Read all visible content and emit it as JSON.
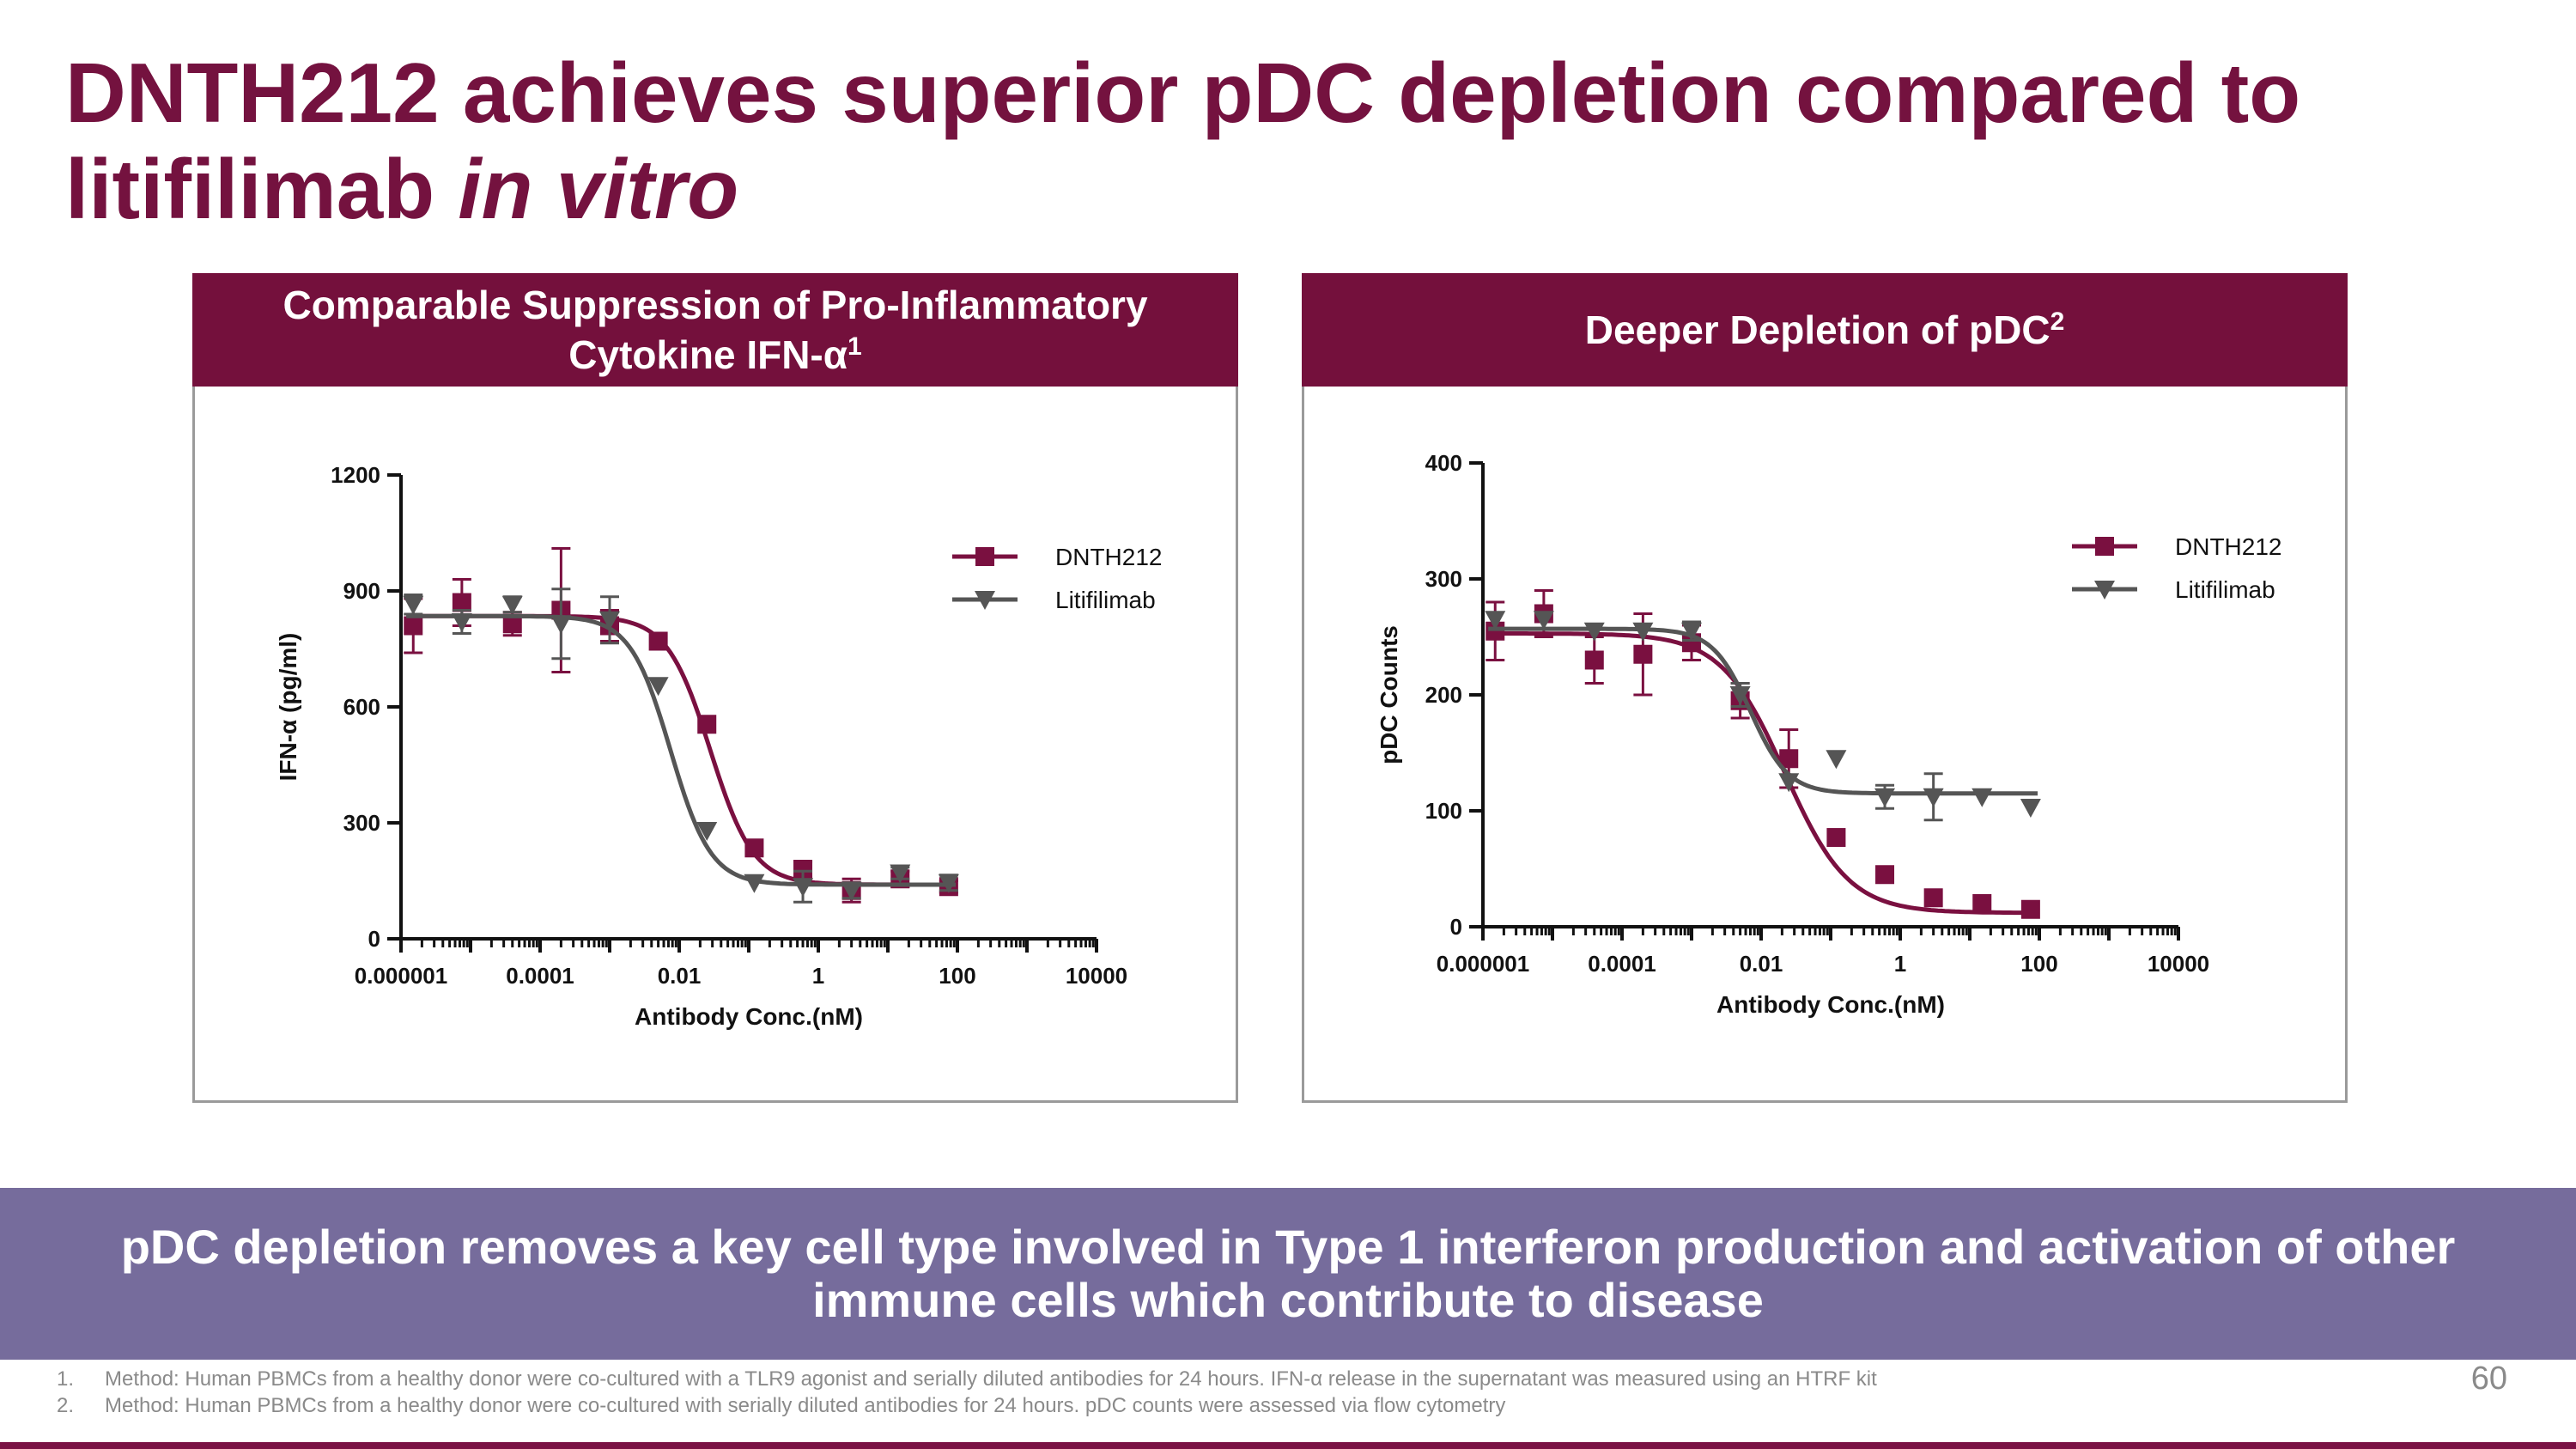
{
  "title": {
    "main": "DNTH212 achieves superior pDC depletion compared to litifilimab ",
    "italic": "in vitro"
  },
  "panels": [
    {
      "header": "Comparable Suppression of Pro-Inflammatory Cytokine IFN-α",
      "sup": "1"
    },
    {
      "header": "Deeper Depletion of pDC",
      "sup": "2"
    }
  ],
  "banner": "pDC depletion removes a key cell type involved in Type 1 interferon production and activation of other immune cells which contribute to disease",
  "footnotes": [
    {
      "num": "1.",
      "text": "Method: Human PBMCs from a healthy donor were co-cultured with a TLR9 agonist and serially diluted antibodies for 24 hours. IFN-α release in the supernatant was measured using an HTRF kit"
    },
    {
      "num": "2.",
      "text": "Method: Human PBMCs from a healthy donor were co-cultured with serially diluted antibodies for 24 hours. pDC counts were assessed via flow cytometry"
    }
  ],
  "page_number": "60",
  "colors": {
    "dnth212": "#7a1040",
    "litifilimab": "#555555",
    "header": "#74103c",
    "banner": "#766c9c"
  },
  "chart_data": [
    {
      "type": "scatter",
      "xlabel": "Antibody Conc.(nM)",
      "ylabel": "IFN-α (pg/ml)",
      "xscale": "log",
      "xlim": [
        1e-06,
        10000
      ],
      "ylim": [
        0,
        1200
      ],
      "xticks": [
        "0.000001",
        "0.0001",
        "0.01",
        "1",
        "100",
        "10000"
      ],
      "yticks": [
        "0",
        "300",
        "600",
        "900",
        "1200"
      ],
      "legend_position": "top-right",
      "series": [
        {
          "name": "DNTH212",
          "marker": "square",
          "x": [
            1.5e-06,
            7.5e-06,
            4e-05,
            0.0002,
            0.001,
            0.005,
            0.025,
            0.12,
            0.6,
            3,
            15,
            75
          ],
          "y": [
            810,
            870,
            815,
            850,
            810,
            770,
            555,
            235,
            180,
            125,
            155,
            135
          ],
          "err": [
            70,
            60,
            30,
            160,
            40,
            0,
            0,
            0,
            20,
            30,
            20,
            15
          ],
          "fit": {
            "top": 835,
            "bottom": 140,
            "ec50": 0.028,
            "hill": 1.4
          }
        },
        {
          "name": "Litifilimab",
          "marker": "triangle-down",
          "x": [
            1.5e-06,
            7.5e-06,
            4e-05,
            0.0002,
            0.001,
            0.005,
            0.025,
            0.12,
            0.6,
            3,
            15,
            75
          ],
          "y": [
            865,
            820,
            865,
            815,
            825,
            655,
            280,
            145,
            135,
            125,
            170,
            145
          ],
          "err": [
            25,
            30,
            20,
            90,
            60,
            0,
            0,
            0,
            40,
            20,
            15,
            20
          ],
          "fit": {
            "top": 835,
            "bottom": 140,
            "ec50": 0.0075,
            "hill": 1.5
          }
        }
      ]
    },
    {
      "type": "scatter",
      "xlabel": "Antibody Conc.(nM)",
      "ylabel": "pDC Counts",
      "xscale": "log",
      "xlim": [
        1e-06,
        10000
      ],
      "ylim": [
        0,
        400
      ],
      "xticks": [
        "0.000001",
        "0.0001",
        "0.01",
        "1",
        "100",
        "10000"
      ],
      "yticks": [
        "0",
        "100",
        "200",
        "300",
        "400"
      ],
      "legend_position": "top-right",
      "series": [
        {
          "name": "DNTH212",
          "marker": "square",
          "x": [
            1.5e-06,
            7.5e-06,
            4e-05,
            0.0002,
            0.001,
            0.005,
            0.025,
            0.12,
            0.6,
            3,
            15,
            75
          ],
          "y": [
            255,
            270,
            230,
            235,
            245,
            195,
            145,
            77,
            45,
            25,
            20,
            15
          ],
          "err": [
            25,
            20,
            20,
            35,
            15,
            15,
            25,
            0,
            0,
            0,
            0,
            0
          ],
          "fit": {
            "top": 253,
            "bottom": 12,
            "ec50": 0.022,
            "hill": 0.95
          }
        },
        {
          "name": "Litifilimab",
          "marker": "triangle-down",
          "x": [
            1.5e-06,
            7.5e-06,
            4e-05,
            0.0002,
            0.001,
            0.005,
            0.025,
            0.12,
            0.6,
            3,
            15,
            75
          ],
          "y": [
            265,
            265,
            255,
            255,
            255,
            200,
            125,
            145,
            112,
            112,
            112,
            103
          ],
          "err": [
            0,
            0,
            0,
            0,
            8,
            10,
            0,
            0,
            10,
            20,
            0,
            0
          ],
          "fit": {
            "top": 257,
            "bottom": 115,
            "ec50": 0.007,
            "hill": 1.6
          }
        }
      ]
    }
  ]
}
